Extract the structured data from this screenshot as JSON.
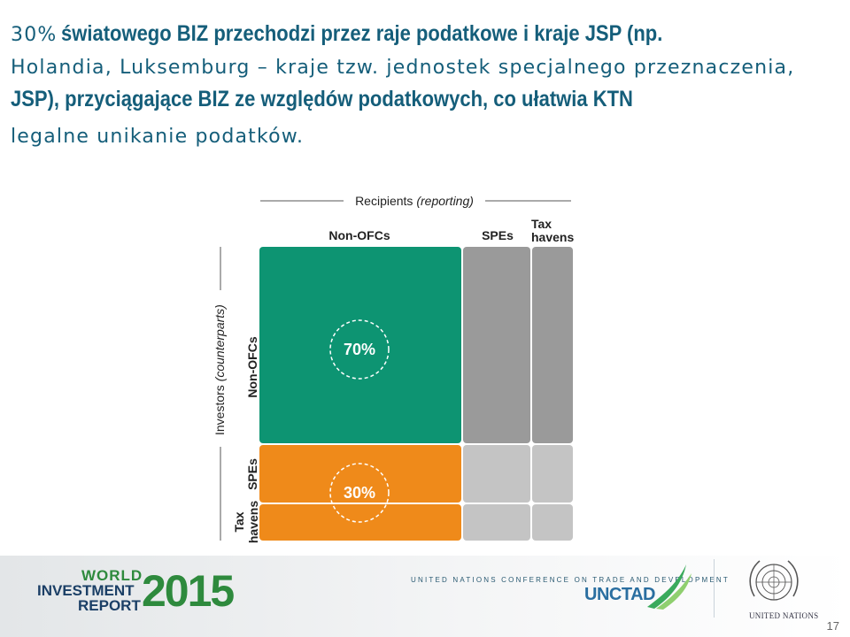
{
  "headline": {
    "l1_percent": "30%",
    "l1_bold": "światowego BIZ przechodzi przez raje podatkowe i kraje JSP (np.",
    "l2": "Holandia, Luksemburg – kraje tzw. jednostek specjalnego przeznaczenia,",
    "l3_bold": "JSP), przyciągające BIZ ze względów podatkowych, co ułatwia KTN",
    "l4": "legalne unikanie podatków."
  },
  "chart_data": {
    "type": "heatmap",
    "title": "",
    "top_axis_label": "Recipients",
    "top_axis_qualifier": "(reporting)",
    "left_axis_label": "Investors",
    "left_axis_qualifier": "(counterparts)",
    "columns": [
      "Non-OFCs",
      "SPEs",
      [
        "Tax",
        "havens"
      ]
    ],
    "rows": [
      "Non-OFCs",
      "SPEs",
      [
        "Tax",
        "havens"
      ]
    ],
    "highlighted_shares": [
      {
        "row": "Non-OFCs",
        "value": 70,
        "label": "70%"
      },
      {
        "row": "SPEs + Tax havens",
        "value": 30,
        "label": "30%"
      }
    ],
    "colors": {
      "green": "#0d9472",
      "orange": "#ef8a1a",
      "dark_grey": "#9a9a9a",
      "light_grey": "#c4c4c4"
    }
  },
  "footer": {
    "report_word1": "WORLD",
    "report_word2": "INVESTMENT",
    "report_word3": "REPORT",
    "report_year": "2015",
    "conference": "UNITED NATIONS CONFERENCE ON TRADE AND DEVELOPMENT",
    "unctad": "UNCTAD",
    "united_nations": "UNITED NATIONS",
    "page_number": "17"
  }
}
